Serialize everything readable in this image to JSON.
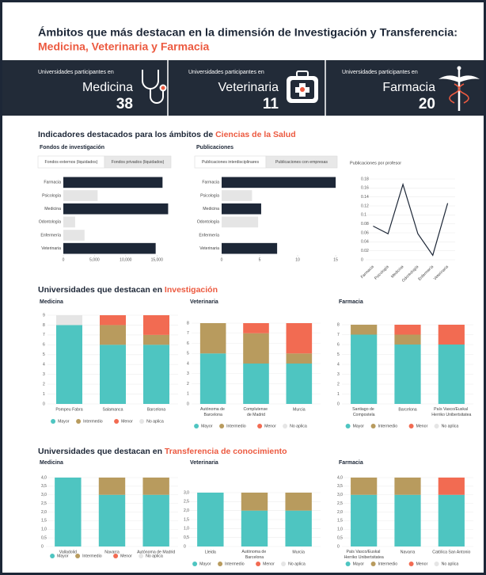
{
  "header": {
    "title": "Ámbitos que más destacan en la dimensión de Investigación y Transferencia:",
    "subtitle": "Medicina, Veterinaria y Farmacia"
  },
  "cards": [
    {
      "label": "Universidades participantes en",
      "name": "Medicina",
      "value": 38
    },
    {
      "label": "Universidades participantes en",
      "name": "Veterinaria",
      "value": 11
    },
    {
      "label": "Universidades participantes en",
      "name": "Farmacia",
      "value": 20
    }
  ],
  "sections": [
    {
      "title": "Indicadores destacados para los ámbitos de ",
      "highlight": "Ciencias de la Salud"
    },
    {
      "title": "Universidades que destacan en ",
      "highlight": "Investigación"
    },
    {
      "title": "Universidades que destacan en ",
      "highlight": "Transferencia de conocimiento"
    }
  ],
  "chart_data": [
    {
      "type": "hbar",
      "title": "Fondos de investigación",
      "tabs": [
        "Fondos externos (liquidados)",
        "Fondos privados (liquidados)"
      ],
      "categories": [
        "Farmacia",
        "Psicología",
        "Medicina",
        "Odontología",
        "Enfermería",
        "Veterinaria"
      ],
      "values": [
        15900,
        5500,
        16800,
        1900,
        3400,
        14800
      ],
      "colors": [
        "#1d2737",
        "#e5e5e5",
        "#1d2737",
        "#e5e5e5",
        "#e5e5e5",
        "#1d2737"
      ],
      "xlim": [
        0,
        17000
      ],
      "xticks": [
        0,
        {
          "value": 5000,
          "label": "5,000"
        },
        {
          "value": 10000,
          "label": "10,000"
        },
        {
          "value": 15000,
          "label": "15,000"
        }
      ]
    },
    {
      "type": "hbar",
      "title": "Publicaciones",
      "tabs": [
        "Publicaciones interdisciplinares",
        "Publicaciones con empresas"
      ],
      "categories": [
        "Farmacia",
        "Psicología",
        "Medicina",
        "Odontología",
        "Enfermería",
        "Veterinaria"
      ],
      "values": [
        15,
        4,
        5.2,
        4.8,
        0,
        7.3
      ],
      "colors": [
        "#1d2737",
        "#e5e5e5",
        "#1d2737",
        "#e5e5e5",
        "#e5e5e5",
        "#1d2737"
      ],
      "xlim": [
        0,
        15.2
      ],
      "xticks": [
        0,
        5,
        10,
        15
      ]
    },
    {
      "type": "line",
      "title": "Publicaciones por profesor",
      "categories": [
        "Farmacia",
        "Psicología",
        "Medicina",
        "Odontología",
        "Enfermería",
        "Veterinaria"
      ],
      "values": [
        0.075,
        0.058,
        0.168,
        0.058,
        0.01,
        0.126
      ],
      "color": "#1d2737",
      "ylim": [
        0,
        0.18
      ],
      "yticks": [
        0,
        0.02,
        0.04,
        0.06,
        0.08,
        0.1,
        0.12,
        0.14,
        0.16,
        0.18
      ],
      "grid": true
    },
    {
      "type": "stacked_bar",
      "title": "Medicina",
      "categories": [
        "Pompeu Fabra",
        "Salamanca",
        "Barcelona"
      ],
      "series": [
        {
          "name": "Mayor",
          "color": "#4ec5c1",
          "values": [
            8,
            6,
            6
          ]
        },
        {
          "name": "Intermedio",
          "color": "#b89b5e",
          "values": [
            0,
            2,
            1
          ]
        },
        {
          "name": "Menor",
          "color": "#f26b52",
          "values": [
            0,
            1,
            2
          ]
        },
        {
          "name": "No aplica",
          "color": "#e5e5e5",
          "values": [
            1,
            0,
            0
          ]
        }
      ],
      "ylim": [
        0,
        9
      ],
      "yticks": [
        0,
        1,
        2,
        3,
        4,
        5,
        6,
        7,
        8,
        9
      ],
      "grid": true
    },
    {
      "type": "stacked_bar",
      "title": "Veterinaria",
      "categories": [
        "Autónoma de Barcelona",
        "Complutense de Madrid",
        "Murcia"
      ],
      "series": [
        {
          "name": "Mayor",
          "color": "#4ec5c1",
          "values": [
            5,
            4,
            4
          ]
        },
        {
          "name": "Intermedio",
          "color": "#b89b5e",
          "values": [
            3,
            3,
            1
          ]
        },
        {
          "name": "Menor",
          "color": "#f26b52",
          "values": [
            0,
            1,
            3
          ]
        },
        {
          "name": "No aplica",
          "color": "#e5e5e5",
          "values": [
            0,
            0,
            0
          ]
        }
      ],
      "ylim": [
        0,
        8
      ],
      "yticks": [
        0,
        1,
        2,
        3,
        4,
        5,
        6,
        7,
        8
      ],
      "grid": true
    },
    {
      "type": "stacked_bar",
      "title": "Farmacia",
      "categories": [
        "Santiago de Compostela",
        "Barcelona",
        "País Vasco/Euskal Herriko Unibertsitatea"
      ],
      "series": [
        {
          "name": "Mayor",
          "color": "#4ec5c1",
          "values": [
            7,
            6,
            6
          ]
        },
        {
          "name": "Intermedio",
          "color": "#b89b5e",
          "values": [
            1,
            1,
            0
          ]
        },
        {
          "name": "Menor",
          "color": "#f26b52",
          "values": [
            0,
            1,
            2
          ]
        },
        {
          "name": "No aplica",
          "color": "#e5e5e5",
          "values": [
            0,
            0,
            0
          ]
        }
      ],
      "ylim": [
        0,
        8
      ],
      "yticks": [
        0,
        1,
        2,
        3,
        4,
        5,
        6,
        7,
        8
      ],
      "grid": true
    },
    {
      "type": "stacked_bar",
      "title": "Medicina",
      "categories": [
        "Valladolid",
        "Navarra",
        "Autónoma de Madrid"
      ],
      "series": [
        {
          "name": "Mayor",
          "color": "#4ec5c1",
          "values": [
            4,
            3,
            3
          ]
        },
        {
          "name": "Intermedio",
          "color": "#b89b5e",
          "values": [
            0,
            1,
            1
          ]
        },
        {
          "name": "Menor",
          "color": "#f26b52",
          "values": [
            0,
            0,
            0
          ]
        },
        {
          "name": "No aplica",
          "color": "#e5e5e5",
          "values": [
            0,
            0,
            0
          ]
        }
      ],
      "ylim": [
        0,
        4
      ],
      "yticks": [
        0,
        {
          "value": 0.5,
          "label": "0,5"
        },
        {
          "value": 1,
          "label": "1,0"
        },
        {
          "value": 1.5,
          "label": "1,5"
        },
        {
          "value": 2,
          "label": "2,0"
        },
        {
          "value": 2.5,
          "label": "2,5"
        },
        {
          "value": 3,
          "label": "3,0"
        },
        {
          "value": 3.5,
          "label": "3,5"
        },
        {
          "value": 4,
          "label": "4,0"
        }
      ],
      "grid": true
    },
    {
      "type": "stacked_bar",
      "title": "Veterinaria",
      "categories": [
        "Lleida",
        "Autónoma de Barcelona",
        "Murcia"
      ],
      "series": [
        {
          "name": "Mayor",
          "color": "#4ec5c1",
          "values": [
            3,
            2,
            2
          ]
        },
        {
          "name": "Intermedio",
          "color": "#b89b5e",
          "values": [
            0,
            1,
            1
          ]
        },
        {
          "name": "Menor",
          "color": "#f26b52",
          "values": [
            0,
            0,
            0
          ]
        },
        {
          "name": "No aplica",
          "color": "#e5e5e5",
          "values": [
            0,
            0,
            0
          ]
        }
      ],
      "ylim": [
        0,
        3
      ],
      "yticks": [
        0,
        {
          "value": 0.5,
          "label": "0,5"
        },
        {
          "value": 1,
          "label": "1,0"
        },
        {
          "value": 1.5,
          "label": "1,5"
        },
        {
          "value": 2,
          "label": "2,0"
        },
        {
          "value": 2.5,
          "label": "2,5"
        },
        {
          "value": 3,
          "label": "3,0"
        }
      ],
      "grid": true
    },
    {
      "type": "stacked_bar",
      "title": "Farmacia",
      "categories": [
        "País Vasco/Euskal Herriko Unibertsitatea",
        "Navarra",
        "Católica San Antonio"
      ],
      "series": [
        {
          "name": "Mayor",
          "color": "#4ec5c1",
          "values": [
            3,
            3,
            3
          ]
        },
        {
          "name": "Intermedio",
          "color": "#b89b5e",
          "values": [
            1,
            1,
            0
          ]
        },
        {
          "name": "Menor",
          "color": "#f26b52",
          "values": [
            0,
            0,
            1
          ]
        },
        {
          "name": "No aplica",
          "color": "#e5e5e5",
          "values": [
            0,
            0,
            0
          ]
        }
      ],
      "ylim": [
        0,
        4
      ],
      "yticks": [
        0,
        {
          "value": 0.5,
          "label": "0,5"
        },
        {
          "value": 1,
          "label": "1,0"
        },
        {
          "value": 1.5,
          "label": "1,5"
        },
        {
          "value": 2,
          "label": "2,0"
        },
        {
          "value": 2.5,
          "label": "2,5"
        },
        {
          "value": 3,
          "label": "3,0"
        },
        {
          "value": 3.5,
          "label": "3,5"
        },
        {
          "value": 4,
          "label": "4,0"
        }
      ],
      "grid": true
    }
  ]
}
